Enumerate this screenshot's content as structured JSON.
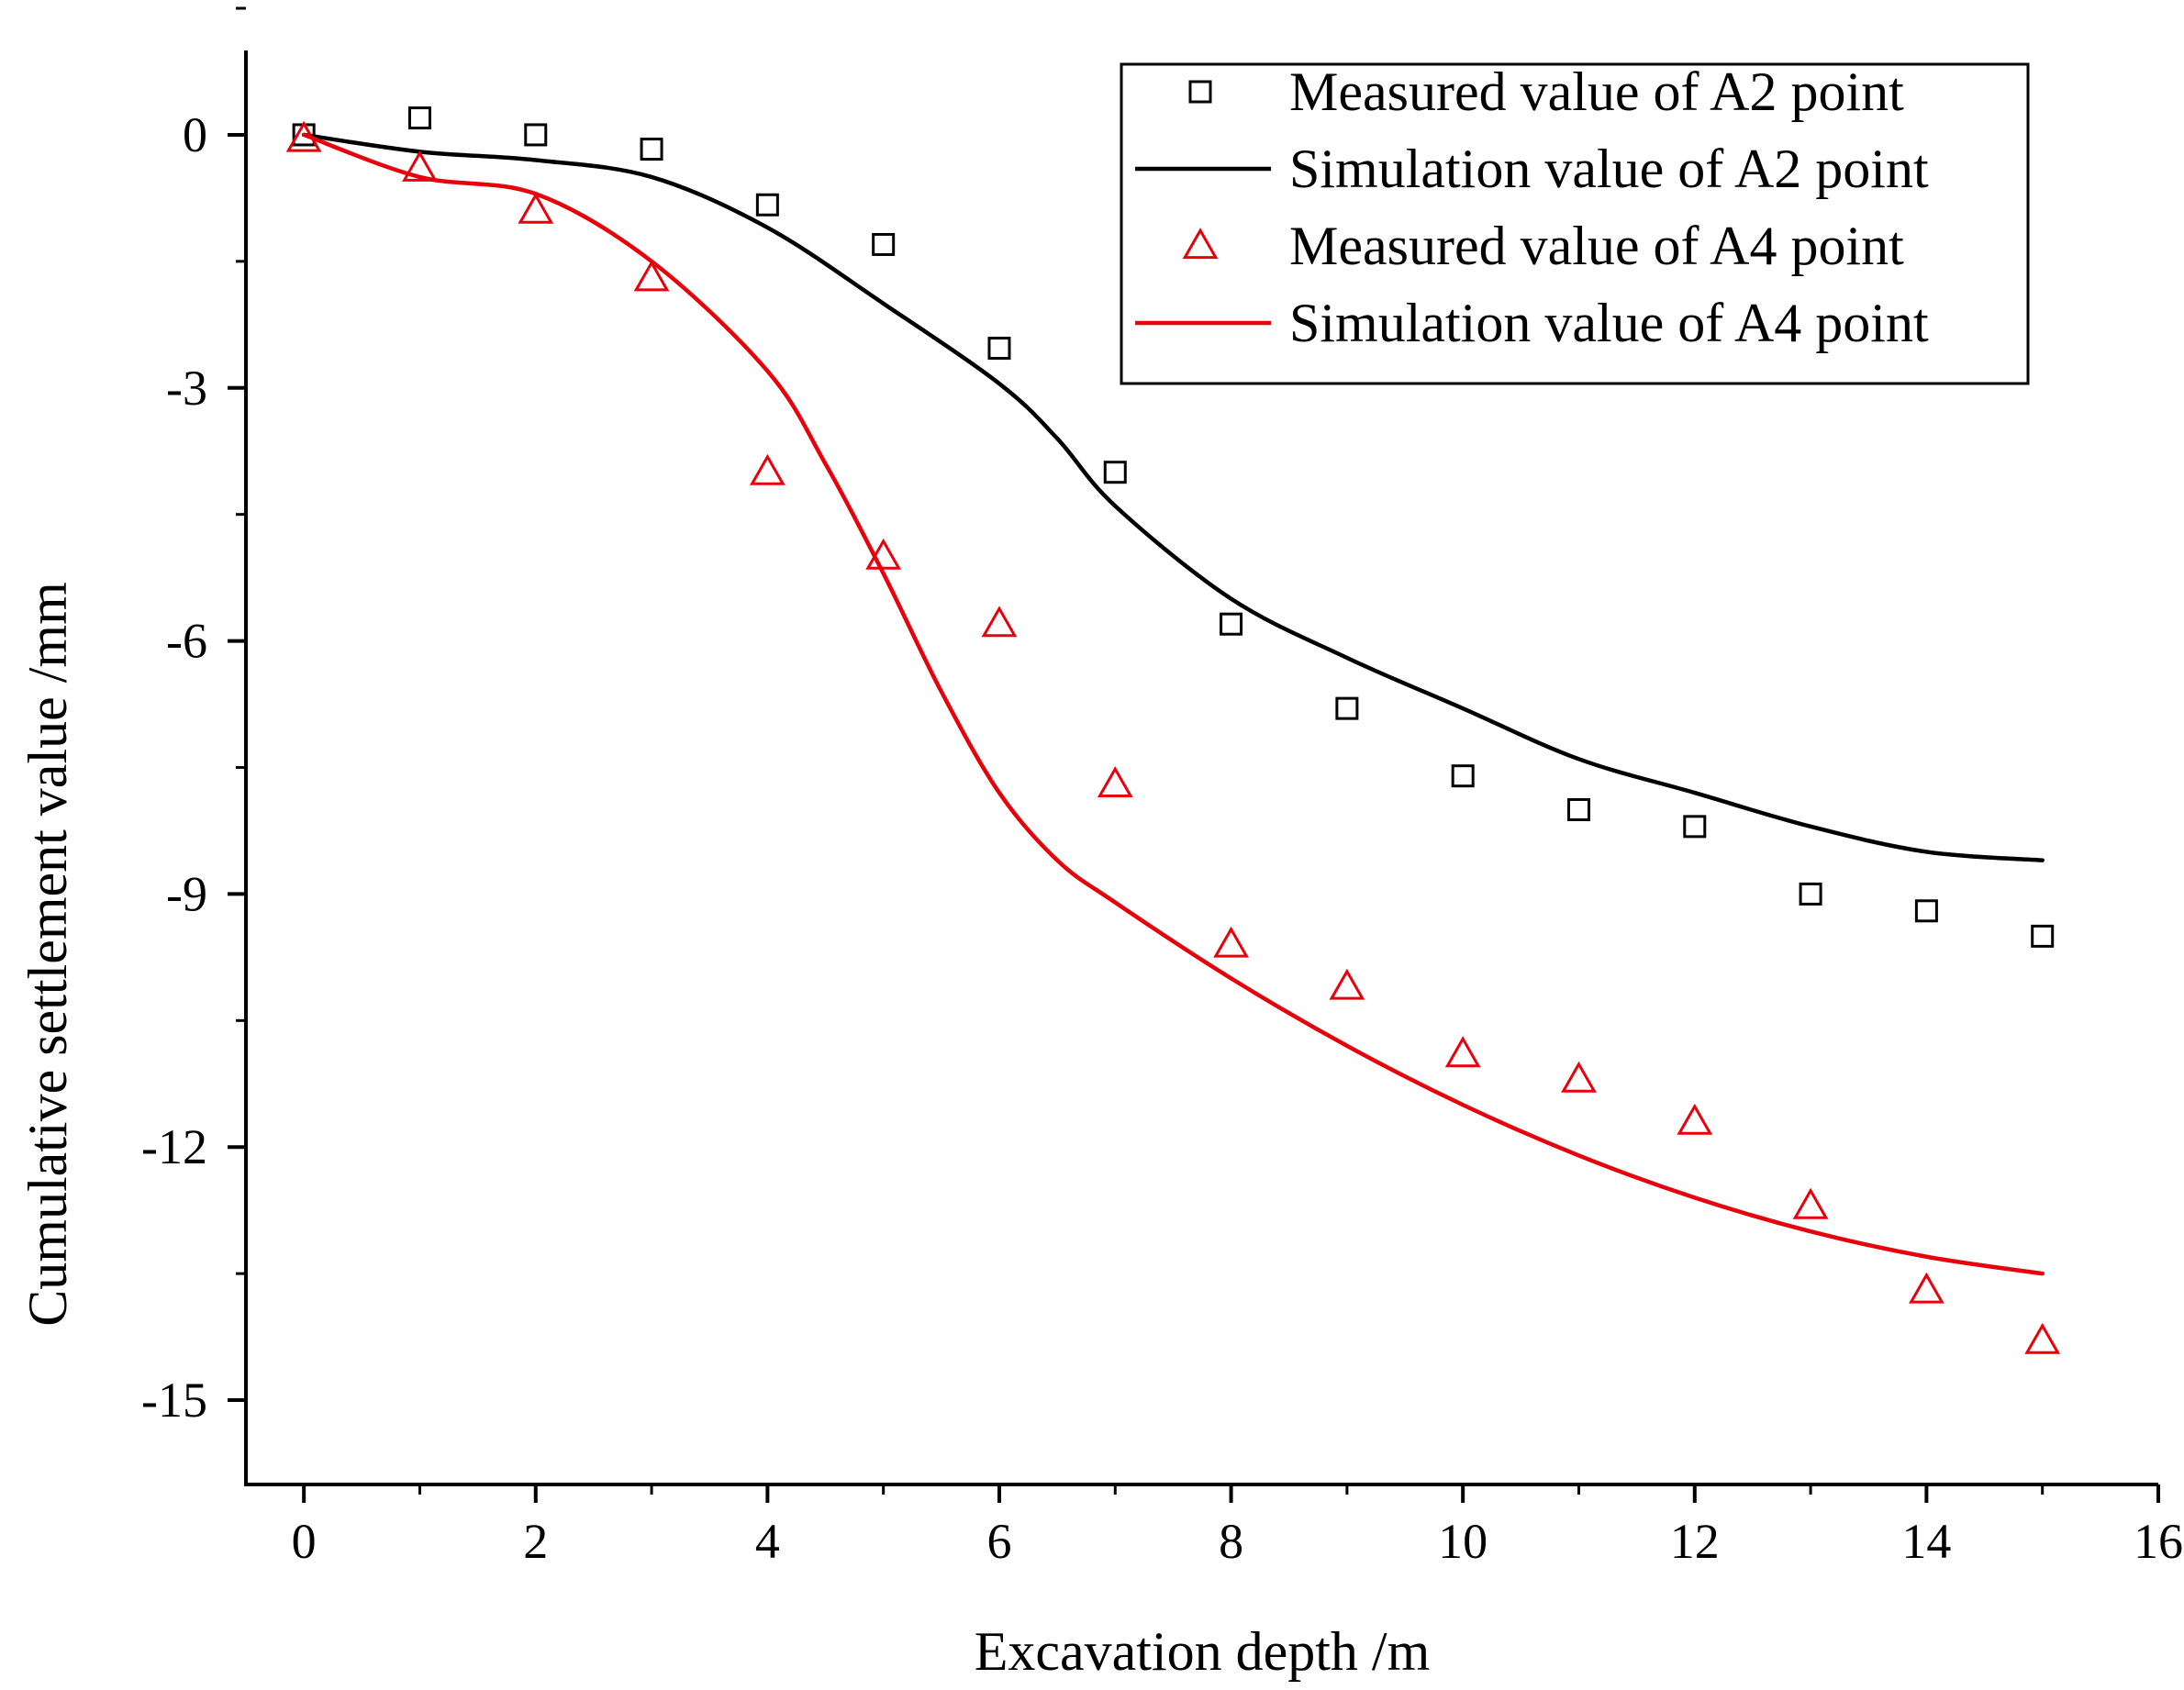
{
  "chart_data": {
    "type": "scatter",
    "xlabel": "Excavation depth /m",
    "ylabel": "Cumulative settlement value /mm",
    "xlim": [
      -0.5,
      16
    ],
    "ylim": [
      -16,
      1
    ],
    "xticks": [
      0,
      2,
      4,
      6,
      8,
      10,
      12,
      14,
      16
    ],
    "yticks": [
      0,
      -3,
      -6,
      -9,
      -12,
      -15
    ],
    "grid": false,
    "legend_position": "top-right",
    "colors": {
      "a2": "#000000",
      "a4": "#e8000b"
    },
    "series": [
      {
        "name": "Measured value of A2 point",
        "kind": "markers",
        "marker": "square",
        "color": "#000000",
        "x": [
          0,
          1,
          2,
          3,
          4,
          5,
          6,
          7,
          8,
          9,
          10,
          11,
          12,
          13,
          14,
          15
        ],
        "y": [
          0,
          0.2,
          0,
          -0.17,
          -0.83,
          -1.3,
          -2.53,
          -4.0,
          -5.8,
          -6.8,
          -7.6,
          -8.0,
          -8.2,
          -9.0,
          -9.2,
          -9.5
        ]
      },
      {
        "name": "Simulation value of A2 point",
        "kind": "line",
        "color": "#000000",
        "x": [
          0,
          1,
          2,
          3,
          4,
          5,
          6,
          6.5,
          7,
          8,
          9,
          10,
          11,
          12,
          13,
          14,
          15
        ],
        "y": [
          0,
          -0.2,
          -0.3,
          -0.5,
          -1.1,
          -2.0,
          -2.95,
          -3.6,
          -4.4,
          -5.5,
          -6.2,
          -6.8,
          -7.4,
          -7.8,
          -8.2,
          -8.5,
          -8.6
        ]
      },
      {
        "name": "Measured value of A4 point",
        "kind": "markers",
        "marker": "triangle",
        "color": "#e8000b",
        "x": [
          0,
          1,
          2,
          3,
          4,
          5,
          6,
          7,
          8,
          9,
          10,
          11,
          12,
          13,
          14,
          15
        ],
        "y": [
          -0.05,
          -0.4,
          -0.9,
          -1.7,
          -4.0,
          -5.0,
          -5.8,
          -7.7,
          -9.6,
          -10.1,
          -10.9,
          -11.2,
          -11.7,
          -12.7,
          -13.7,
          -14.3
        ]
      },
      {
        "name": "Simulation value of A4 point",
        "kind": "line",
        "color": "#e8000b",
        "x": [
          0,
          1,
          2,
          3,
          4,
          4.5,
          5,
          5.5,
          6,
          6.5,
          7,
          8,
          9,
          10,
          11,
          12,
          13,
          14,
          15
        ],
        "y": [
          0,
          -0.5,
          -0.7,
          -1.5,
          -2.8,
          -3.9,
          -5.2,
          -6.6,
          -7.8,
          -8.6,
          -9.1,
          -10.0,
          -10.8,
          -11.5,
          -12.1,
          -12.6,
          -13.0,
          -13.3,
          -13.5
        ]
      }
    ]
  }
}
